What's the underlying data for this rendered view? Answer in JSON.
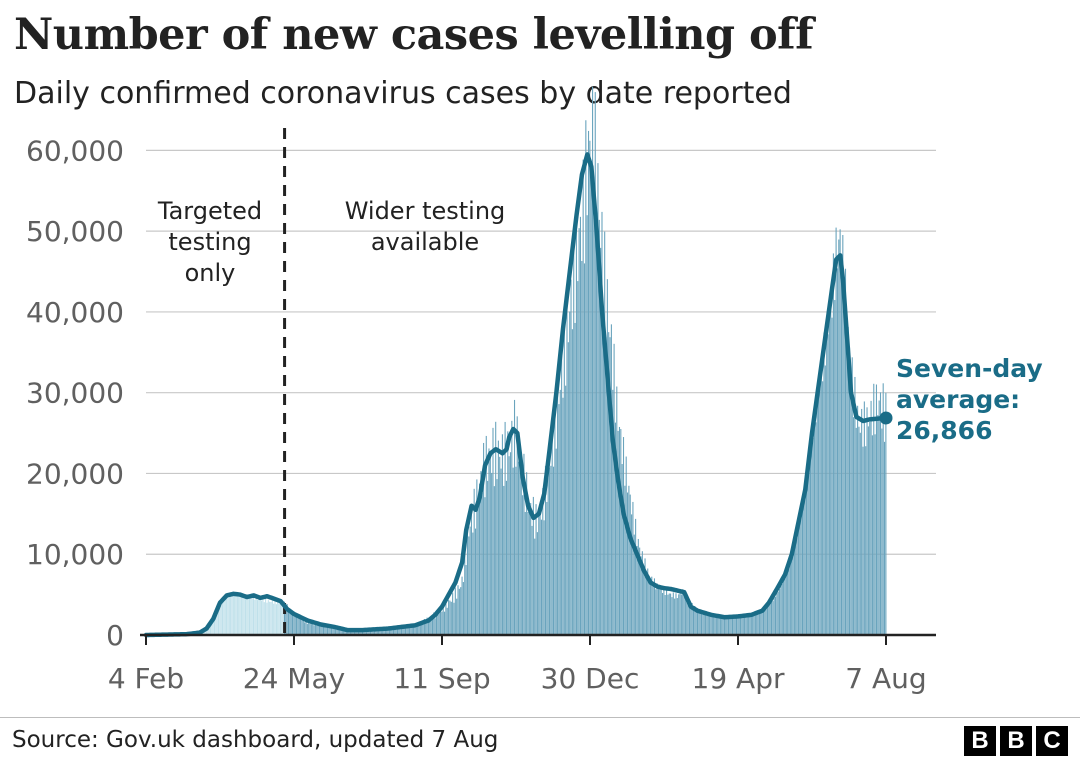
{
  "header": {
    "title": "Number of new cases levelling off",
    "subtitle": "Daily confirmed coronavirus cases by date reported"
  },
  "footer": {
    "source": "Source: Gov.uk dashboard, updated 7 Aug",
    "logo_letters": [
      "B",
      "B",
      "C"
    ]
  },
  "colors": {
    "bars_before": "#bfe0ea",
    "bars_after": "#6aa4bd",
    "average_line": "#1a6c87",
    "grid": "#c8c8c8",
    "axis": "#222222"
  },
  "chart_data": {
    "type": "bar",
    "title": "Number of new cases levelling off",
    "subtitle": "Daily confirmed coronavirus cases by date reported",
    "xlabel": "",
    "ylabel": "",
    "ylim": [
      0,
      65000
    ],
    "yticks": [
      0,
      10000,
      20000,
      30000,
      40000,
      50000,
      60000
    ],
    "ytick_labels": [
      "0",
      "10,000",
      "20,000",
      "30,000",
      "40,000",
      "50,000",
      "60,000"
    ],
    "x_range_days": [
      0,
      550
    ],
    "xticks": [
      {
        "day": 0,
        "label": "4 Feb"
      },
      {
        "day": 110,
        "label": "24 May"
      },
      {
        "day": 220,
        "label": "11 Sep"
      },
      {
        "day": 330,
        "label": "30 Dec"
      },
      {
        "day": 440,
        "label": "19 Apr"
      },
      {
        "day": 550,
        "label": "7 Aug"
      }
    ],
    "grid": true,
    "testing_change_day": 103,
    "annotations": {
      "before": [
        "Targeted",
        "testing",
        "only"
      ],
      "after": [
        "Wider testing",
        "available"
      ]
    },
    "series": [
      {
        "name": "Daily confirmed cases",
        "style": "bars",
        "anchors_day_value": [
          [
            0,
            0
          ],
          [
            30,
            100
          ],
          [
            45,
            600
          ],
          [
            52,
            2500
          ],
          [
            60,
            4800
          ],
          [
            70,
            5000
          ],
          [
            80,
            4600
          ],
          [
            90,
            4200
          ],
          [
            100,
            4000
          ],
          [
            104,
            3800
          ],
          [
            110,
            2600
          ],
          [
            120,
            1500
          ],
          [
            135,
            1000
          ],
          [
            150,
            500
          ],
          [
            165,
            400
          ],
          [
            180,
            700
          ],
          [
            195,
            1000
          ],
          [
            205,
            1500
          ],
          [
            215,
            2500
          ],
          [
            222,
            3500
          ],
          [
            230,
            5000
          ],
          [
            235,
            6500
          ],
          [
            240,
            13000
          ],
          [
            245,
            16000
          ],
          [
            250,
            20000
          ],
          [
            255,
            22000
          ],
          [
            260,
            22500
          ],
          [
            265,
            22000
          ],
          [
            270,
            23000
          ],
          [
            273,
            24500
          ],
          [
            275,
            25000
          ],
          [
            280,
            20000
          ],
          [
            285,
            16000
          ],
          [
            290,
            14000
          ],
          [
            295,
            16000
          ],
          [
            300,
            21000
          ],
          [
            305,
            27000
          ],
          [
            310,
            34000
          ],
          [
            315,
            40000
          ],
          [
            320,
            47000
          ],
          [
            325,
            52000
          ],
          [
            328,
            58000
          ],
          [
            331,
            62000
          ],
          [
            334,
            59000
          ],
          [
            338,
            50000
          ],
          [
            342,
            42000
          ],
          [
            346,
            36000
          ],
          [
            350,
            28000
          ],
          [
            355,
            22000
          ],
          [
            360,
            17000
          ],
          [
            365,
            12000
          ],
          [
            370,
            9000
          ],
          [
            375,
            7000
          ],
          [
            380,
            6000
          ],
          [
            385,
            5500
          ],
          [
            390,
            5000
          ],
          [
            395,
            4800
          ],
          [
            400,
            5500
          ],
          [
            405,
            4000
          ],
          [
            410,
            3000
          ],
          [
            420,
            2500
          ],
          [
            430,
            2200
          ],
          [
            440,
            2300
          ],
          [
            450,
            2300
          ],
          [
            458,
            2800
          ],
          [
            465,
            4000
          ],
          [
            472,
            6000
          ],
          [
            480,
            10000
          ],
          [
            485,
            13000
          ],
          [
            490,
            18000
          ],
          [
            495,
            25000
          ],
          [
            500,
            30000
          ],
          [
            505,
            36000
          ],
          [
            510,
            42000
          ],
          [
            513,
            47000
          ],
          [
            516,
            49000
          ],
          [
            519,
            44000
          ],
          [
            522,
            37000
          ],
          [
            526,
            30000
          ],
          [
            530,
            26000
          ],
          [
            535,
            26000
          ],
          [
            540,
            27500
          ],
          [
            545,
            29000
          ],
          [
            550,
            27000
          ]
        ]
      },
      {
        "name": "Seven-day average",
        "style": "line",
        "anchors_day_value": [
          [
            0,
            0
          ],
          [
            30,
            100
          ],
          [
            40,
            300
          ],
          [
            45,
            800
          ],
          [
            50,
            2000
          ],
          [
            55,
            4000
          ],
          [
            60,
            4900
          ],
          [
            65,
            5100
          ],
          [
            70,
            5000
          ],
          [
            75,
            4700
          ],
          [
            80,
            4900
          ],
          [
            85,
            4600
          ],
          [
            90,
            4800
          ],
          [
            95,
            4500
          ],
          [
            100,
            4200
          ],
          [
            105,
            3200
          ],
          [
            110,
            2600
          ],
          [
            120,
            1800
          ],
          [
            130,
            1300
          ],
          [
            140,
            1000
          ],
          [
            150,
            600
          ],
          [
            160,
            600
          ],
          [
            170,
            700
          ],
          [
            180,
            800
          ],
          [
            190,
            1000
          ],
          [
            200,
            1200
          ],
          [
            210,
            1800
          ],
          [
            215,
            2500
          ],
          [
            220,
            3500
          ],
          [
            225,
            5000
          ],
          [
            230,
            6500
          ],
          [
            235,
            9000
          ],
          [
            238,
            13000
          ],
          [
            242,
            16000
          ],
          [
            245,
            15500
          ],
          [
            248,
            17000
          ],
          [
            252,
            21000
          ],
          [
            256,
            22500
          ],
          [
            260,
            23000
          ],
          [
            265,
            22500
          ],
          [
            268,
            23000
          ],
          [
            270,
            24500
          ],
          [
            273,
            25500
          ],
          [
            276,
            25000
          ],
          [
            280,
            19500
          ],
          [
            284,
            16000
          ],
          [
            288,
            14500
          ],
          [
            292,
            15000
          ],
          [
            296,
            17500
          ],
          [
            300,
            23000
          ],
          [
            305,
            30000
          ],
          [
            310,
            38000
          ],
          [
            315,
            45000
          ],
          [
            320,
            52000
          ],
          [
            324,
            57000
          ],
          [
            328,
            59500
          ],
          [
            331,
            58000
          ],
          [
            335,
            50000
          ],
          [
            339,
            40000
          ],
          [
            343,
            32000
          ],
          [
            347,
            24000
          ],
          [
            351,
            19000
          ],
          [
            355,
            15000
          ],
          [
            360,
            12000
          ],
          [
            365,
            10000
          ],
          [
            370,
            8000
          ],
          [
            375,
            6500
          ],
          [
            380,
            6000
          ],
          [
            385,
            5800
          ],
          [
            390,
            5700
          ],
          [
            395,
            5500
          ],
          [
            400,
            5300
          ],
          [
            405,
            3500
          ],
          [
            410,
            3000
          ],
          [
            420,
            2500
          ],
          [
            430,
            2200
          ],
          [
            440,
            2300
          ],
          [
            450,
            2500
          ],
          [
            458,
            3000
          ],
          [
            463,
            4000
          ],
          [
            470,
            6000
          ],
          [
            475,
            7500
          ],
          [
            480,
            10000
          ],
          [
            485,
            14000
          ],
          [
            490,
            18000
          ],
          [
            495,
            25000
          ],
          [
            500,
            31000
          ],
          [
            505,
            37000
          ],
          [
            510,
            43000
          ],
          [
            513,
            46500
          ],
          [
            516,
            47000
          ],
          [
            518,
            44000
          ],
          [
            521,
            37000
          ],
          [
            524,
            30000
          ],
          [
            528,
            27000
          ],
          [
            533,
            26500
          ],
          [
            538,
            26700
          ],
          [
            545,
            26800
          ],
          [
            550,
            26866
          ]
        ]
      }
    ],
    "average_label": [
      "Seven-day",
      "average:",
      "26,866"
    ],
    "latest_average": 26866
  }
}
